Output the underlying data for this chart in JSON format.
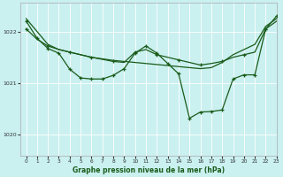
{
  "title": "Graphe pression niveau de la mer (hPa)",
  "bg_color": "#caf0f0",
  "grid_color": "#ffffff",
  "line_color": "#1a5c1a",
  "xlim": [
    -0.5,
    23
  ],
  "ylim": [
    1019.6,
    1022.55
  ],
  "yticks": [
    1020,
    1021,
    1022
  ],
  "xticks": [
    0,
    1,
    2,
    3,
    4,
    5,
    6,
    7,
    8,
    9,
    10,
    11,
    12,
    13,
    14,
    15,
    16,
    17,
    18,
    19,
    20,
    21,
    22,
    23
  ],
  "series": [
    [
      1022.25,
      1022.0,
      1021.75,
      1021.65,
      1021.6,
      1021.55,
      1021.5,
      1021.47,
      1021.44,
      1021.42,
      1021.4,
      1021.38,
      1021.36,
      1021.34,
      1021.32,
      1021.3,
      1021.28,
      1021.3,
      1021.4,
      1021.55,
      1021.65,
      1021.75,
      1022.1,
      1022.25
    ],
    [
      1022.05,
      1021.85,
      1021.72,
      1021.65,
      1021.6,
      1021.55,
      1021.5,
      1021.46,
      1021.42,
      1021.4,
      1021.6,
      1021.65,
      1021.55,
      1021.5,
      1021.45,
      1021.4,
      1021.35,
      1021.38,
      1021.42,
      1021.5,
      1021.55,
      1021.6,
      1022.05,
      1022.2
    ],
    [
      1022.2,
      1021.87,
      1021.67,
      1021.58,
      1021.27,
      1021.1,
      1021.08,
      1021.08,
      1021.15,
      1021.28,
      1021.58,
      1021.72,
      1021.58,
      1021.38,
      1021.18,
      1020.32,
      1020.44,
      1020.45,
      1020.48,
      1021.08,
      1021.16,
      1021.16,
      1022.05,
      1022.3
    ]
  ],
  "marker_series": 2,
  "marker_every": 2,
  "smooth_series": [
    0,
    1
  ]
}
